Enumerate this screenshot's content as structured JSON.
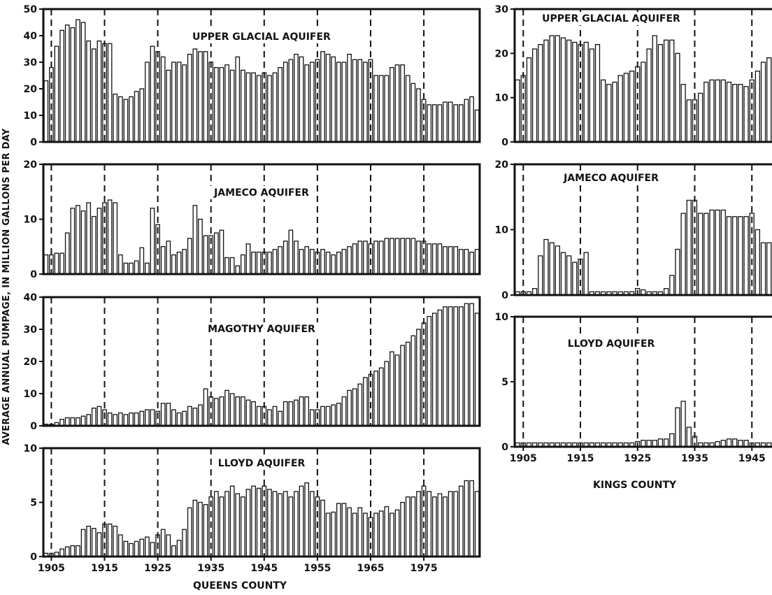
{
  "y_axis_label": "AVERAGE ANNUAL PUMPAGE, IN MILLION GALLONS PER DAY",
  "queens_label": "QUEENS COUNTY",
  "kings_label": "KINGS COUNTY",
  "chart_data": [
    {
      "type": "bar",
      "title": "UPPER GLACIAL AQUIFER",
      "county": "QUEENS COUNTY",
      "x_start": 1904,
      "ylim": [
        0,
        50
      ],
      "yticks": [
        0,
        10,
        20,
        30,
        40,
        50
      ],
      "xticks": [
        1905,
        1915,
        1925,
        1935,
        1945,
        1955,
        1965,
        1975
      ],
      "values": [
        23,
        28,
        36,
        42,
        44,
        43,
        46,
        45,
        38,
        35,
        38,
        37,
        37,
        18,
        17,
        16,
        17,
        19,
        20,
        30,
        36,
        34,
        32,
        27,
        30,
        30,
        29,
        33,
        35,
        34,
        34,
        30,
        28,
        28,
        29,
        27,
        32,
        27,
        26,
        26,
        25,
        26,
        25,
        26,
        28,
        30,
        31,
        33,
        32,
        29,
        30,
        31,
        34,
        33,
        32,
        30,
        30,
        33,
        31,
        31,
        30,
        31,
        25,
        25,
        25,
        28,
        29,
        29,
        25,
        22,
        20,
        16,
        14,
        14,
        14,
        15,
        15,
        14,
        14,
        16,
        17,
        12
      ]
    },
    {
      "type": "bar",
      "title": "JAMECO AQUIFER",
      "county": "QUEENS COUNTY",
      "x_start": 1904,
      "ylim": [
        0,
        20
      ],
      "yticks": [
        0,
        10,
        20
      ],
      "xticks": [
        1905,
        1915,
        1925,
        1935,
        1945,
        1955,
        1965,
        1975
      ],
      "values": [
        3.5,
        3.5,
        3.8,
        3.8,
        7.5,
        12,
        12.5,
        11.5,
        13,
        10.5,
        12,
        13,
        13.5,
        13,
        3.5,
        2,
        2,
        2.4,
        4.8,
        2,
        12,
        9,
        5,
        6,
        3.5,
        4,
        4.5,
        6.5,
        12.5,
        10,
        7,
        7,
        7.5,
        8,
        3,
        3,
        1.5,
        3.5,
        5.5,
        4,
        4,
        4,
        4,
        4.5,
        5,
        6,
        8,
        6,
        4.5,
        5,
        4.5,
        4,
        4.5,
        4,
        3.5,
        4,
        4.5,
        5,
        5.5,
        6,
        6,
        5.5,
        6,
        6,
        6.5,
        6.5,
        6.5,
        6.5,
        6.5,
        6.5,
        6,
        6,
        5.5,
        5.5,
        5.5,
        5,
        5,
        5,
        4.5,
        4.5,
        4,
        4.5
      ]
    },
    {
      "type": "bar",
      "title": "MAGOTHY AQUIFER",
      "county": "QUEENS COUNTY",
      "x_start": 1904,
      "ylim": [
        0,
        40
      ],
      "yticks": [
        0,
        10,
        20,
        30,
        40
      ],
      "xticks": [
        1905,
        1915,
        1925,
        1935,
        1945,
        1955,
        1965,
        1975
      ],
      "values": [
        0.5,
        0.5,
        1,
        2,
        2.5,
        2.5,
        2.5,
        3,
        3.5,
        5.5,
        6,
        5,
        4,
        3.5,
        4,
        3.5,
        4,
        4,
        4.5,
        5,
        5,
        4.5,
        7,
        7,
        5,
        4,
        4.5,
        6,
        5.5,
        6.5,
        11.5,
        9,
        8.5,
        9,
        11,
        10,
        9,
        9,
        8,
        7.5,
        6,
        6,
        5,
        6,
        4.5,
        7.5,
        7.5,
        8,
        9,
        9,
        5,
        5,
        6,
        6,
        6.5,
        7,
        9,
        11,
        11.5,
        13,
        15,
        16,
        17,
        18,
        20,
        23,
        22,
        25,
        26,
        28,
        30,
        32,
        34,
        35,
        36,
        37,
        37,
        37,
        37,
        38,
        38,
        35
      ]
    },
    {
      "type": "bar",
      "title": "LLOYD AQUIFER",
      "county": "QUEENS COUNTY",
      "x_start": 1904,
      "ylim": [
        0,
        10
      ],
      "yticks": [
        0,
        5,
        10
      ],
      "xticks": [
        1905,
        1915,
        1925,
        1935,
        1945,
        1955,
        1965,
        1975
      ],
      "xtick_labels": [
        "1905",
        "1915",
        "1925",
        "1935",
        "1945",
        "1955",
        "1965",
        "1975"
      ],
      "values": [
        0.3,
        0.3,
        0.4,
        0.7,
        0.9,
        1,
        1,
        2.5,
        2.8,
        2.6,
        2.2,
        3,
        3,
        2.8,
        2,
        1.4,
        1.2,
        1.4,
        1.6,
        1.8,
        1.3,
        2,
        2.5,
        2,
        1,
        1.5,
        2.5,
        4.5,
        5.2,
        5,
        4.8,
        5.5,
        6,
        5.5,
        6,
        6.5,
        5.8,
        5.5,
        6.2,
        6.5,
        6.3,
        6.5,
        6.2,
        6,
        5.8,
        6,
        5.5,
        6,
        6.5,
        6.8,
        6,
        5.5,
        5.2,
        4,
        4.1,
        4.9,
        4.9,
        4.5,
        4,
        4.5,
        4,
        3.6,
        4,
        4.2,
        4.6,
        4,
        4.3,
        5,
        5.5,
        5.5,
        6,
        6.5,
        6,
        5.5,
        5.8,
        5.5,
        6,
        6,
        6.5,
        7,
        7,
        6
      ]
    },
    {
      "type": "bar",
      "title": "UPPER GLACIAL AQUIFER",
      "county": "KINGS COUNTY",
      "x_start": 1904,
      "ylim": [
        0,
        30
      ],
      "yticks": [
        0,
        10,
        20,
        30
      ],
      "xticks": [
        1905,
        1915,
        1925,
        1935,
        1945
      ],
      "values": [
        14,
        15,
        19,
        21,
        22,
        23,
        24,
        24,
        23.5,
        23,
        22.5,
        22,
        22.5,
        21,
        22,
        14,
        13,
        13.5,
        15,
        15.5,
        16,
        17,
        18,
        21,
        24,
        22,
        23,
        23,
        20,
        13,
        9.5,
        9.5,
        11,
        13.5,
        14,
        14,
        14,
        13.5,
        13,
        13,
        12.5,
        14,
        16,
        18,
        19,
        19
      ]
    },
    {
      "type": "bar",
      "title": "JAMECO AQUIFER",
      "county": "KINGS COUNTY",
      "x_start": 1904,
      "ylim": [
        0,
        20
      ],
      "yticks": [
        0,
        10,
        20
      ],
      "xticks": [
        1905,
        1915,
        1925,
        1935,
        1945
      ],
      "values": [
        0.5,
        0.5,
        0.5,
        1,
        6,
        8.5,
        8,
        7.5,
        6.5,
        6,
        5,
        5.5,
        6.5,
        0.5,
        0.5,
        0.5,
        0.5,
        0.5,
        0.5,
        0.5,
        0.5,
        1,
        0.8,
        0.5,
        0.5,
        0.5,
        1,
        3,
        7,
        12.5,
        14.5,
        14.5,
        12.5,
        12.5,
        13,
        13,
        13,
        12,
        12,
        12,
        12,
        12.5,
        10,
        8,
        8,
        8.5
      ]
    },
    {
      "type": "bar",
      "title": "LLOYD AQUIFER",
      "county": "KINGS COUNTY",
      "x_start": 1904,
      "ylim": [
        0,
        10
      ],
      "yticks": [
        0,
        5,
        10
      ],
      "xticks": [
        1905,
        1915,
        1925,
        1935,
        1945
      ],
      "xtick_labels": [
        "1905",
        "1915",
        "1925",
        "1935",
        "1945"
      ],
      "values": [
        0.3,
        0.3,
        0.3,
        0.3,
        0.3,
        0.3,
        0.3,
        0.3,
        0.3,
        0.3,
        0.3,
        0.3,
        0.3,
        0.3,
        0.3,
        0.3,
        0.3,
        0.3,
        0.3,
        0.3,
        0.3,
        0.4,
        0.5,
        0.5,
        0.5,
        0.6,
        0.6,
        1,
        3,
        3.5,
        1.5,
        0.8,
        0.3,
        0.3,
        0.3,
        0.4,
        0.5,
        0.6,
        0.6,
        0.5,
        0.5,
        0.3,
        0.3,
        0.3,
        0.3,
        0.3
      ]
    }
  ]
}
